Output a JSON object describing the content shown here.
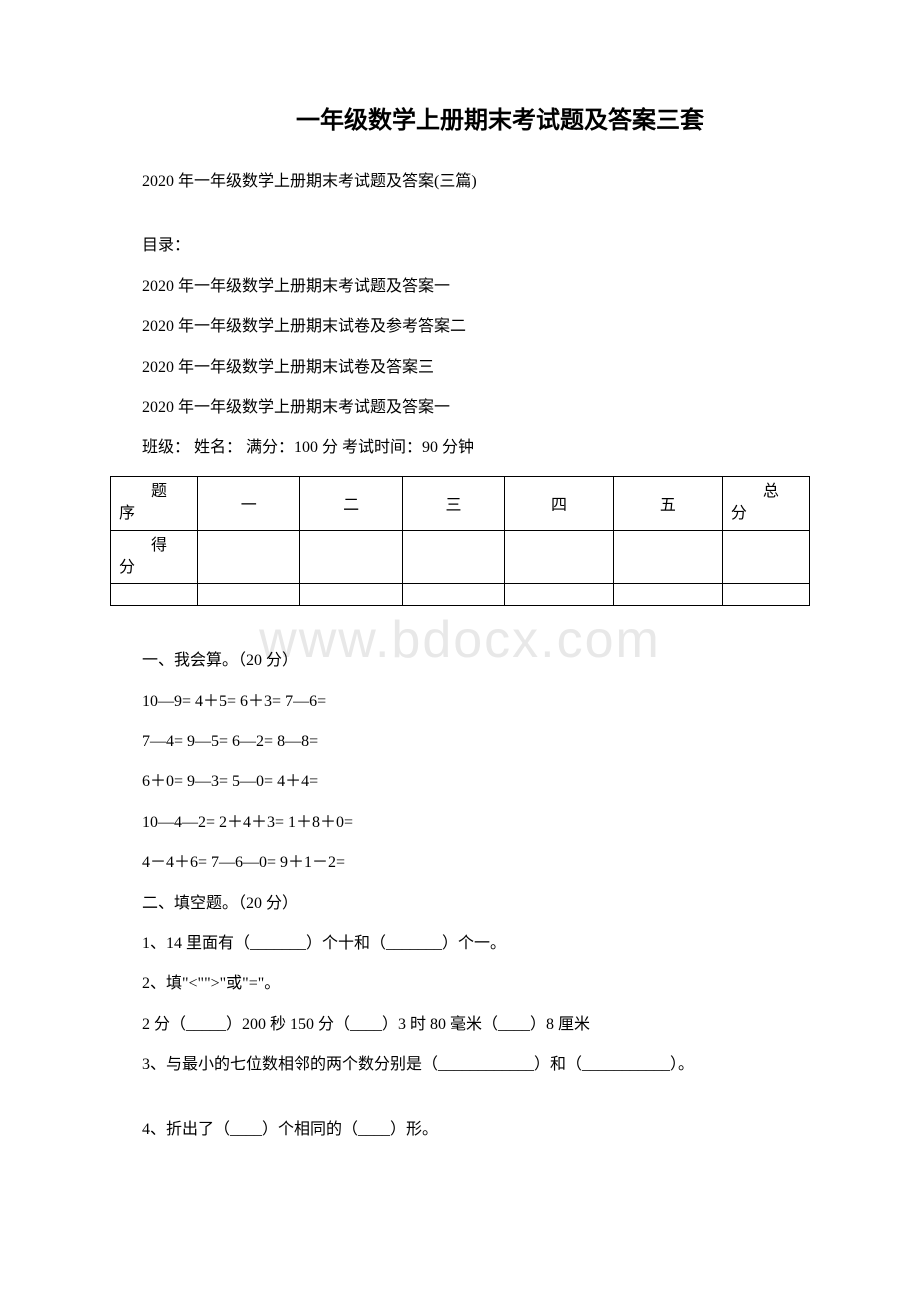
{
  "title": "一年级数学上册期末考试题及答案三套",
  "subtitle": "2020 年一年级数学上册期末考试题及答案(三篇)",
  "toc_heading": "目录：",
  "toc_items": [
    "2020 年一年级数学上册期末考试题及答案一",
    "2020 年一年级数学上册期末试卷及参考答案二",
    "2020 年一年级数学上册期末试卷及答案三",
    "2020 年一年级数学上册期末考试题及答案一"
  ],
  "exam_info": "班级：  姓名：  满分：100 分 考试时间：90 分钟",
  "table": {
    "row0": {
      "col0_line1": "题",
      "col0_line2": "序",
      "col1": "一",
      "col2": "二",
      "col3": "三",
      "col4": "四",
      "col5": "五",
      "col6_line1": "总",
      "col6_line2": "分"
    },
    "row1": {
      "col0_line1": "得",
      "col0_line2": "分"
    }
  },
  "watermark": "www.bdocx.com",
  "sections": [
    "一、我会算。（20 分）",
    "10—9= 4＋5= 6＋3= 7—6=",
    "7—4= 9—5= 6—2= 8—8=",
    "6＋0= 9—3= 5—0= 4＋4=",
    "10—4—2= 2＋4＋3= 1＋8＋0=",
    "4－4＋6= 7—6—0= 9＋1－2=",
    "二、填空题。（20 分）",
    "1、14 里面有（_______）个十和（_______）个一。",
    "2、填\"<\"\">\"或\"=\"。",
    "2 分（_____）200 秒 150 分（____）3 时 80 毫米（____）8 厘米",
    "3、与最小的七位数相邻的两个数分别是（____________）和（___________）。"
  ],
  "final_line": "4、折出了（____）个相同的（____）形。"
}
